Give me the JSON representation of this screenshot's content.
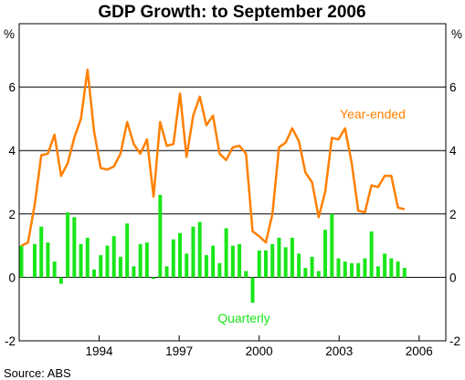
{
  "chart_data": {
    "type": "bar+line",
    "title": "GDP Growth: to September 2006",
    "unit_left": "%",
    "unit_right": "%",
    "source": "Source: ABS",
    "ylim": [
      -2,
      8
    ],
    "yticks": [
      -2,
      0,
      2,
      4,
      6
    ],
    "ytick_labels": [
      "-2",
      "0",
      "2",
      "4",
      "6"
    ],
    "x_start_year": 1991.0,
    "x_end_year": 2007.0,
    "xtick_labels": [
      "1994",
      "1997",
      "2000",
      "2003",
      "2006"
    ],
    "grid": true,
    "colors": {
      "line": "#ff8000",
      "bars": "#19e619",
      "grid": "#000000"
    },
    "series": [
      {
        "name": "Year-ended",
        "type": "line",
        "annotation": "Year-ended",
        "values": [
          1.0,
          1.1,
          2.3,
          3.85,
          3.9,
          4.5,
          3.2,
          3.6,
          4.4,
          5.0,
          6.55,
          4.6,
          3.45,
          3.4,
          3.5,
          3.9,
          4.9,
          4.2,
          3.9,
          4.35,
          2.55,
          4.9,
          4.15,
          4.2,
          5.8,
          3.8,
          5.1,
          5.7,
          4.8,
          5.1,
          3.9,
          3.7,
          4.1,
          4.15,
          3.9,
          1.45,
          1.3,
          1.1,
          2.0,
          4.1,
          4.25,
          4.7,
          4.3,
          3.3,
          3.0,
          1.9,
          2.7,
          4.4,
          4.35,
          4.7,
          3.6,
          2.1,
          2.05,
          2.9,
          2.85,
          3.2,
          3.2,
          2.2,
          2.15
        ]
      },
      {
        "name": "Quarterly",
        "type": "bar",
        "annotation": "Quarterly",
        "values": [
          1.0,
          0.0,
          1.05,
          1.6,
          1.1,
          0.5,
          -0.2,
          2.05,
          1.9,
          1.05,
          1.25,
          0.25,
          0.7,
          1.0,
          1.3,
          0.65,
          1.7,
          0.35,
          1.05,
          1.1,
          -0.05,
          2.6,
          0.35,
          1.2,
          1.4,
          0.75,
          1.6,
          1.75,
          0.7,
          1.0,
          0.45,
          1.55,
          1.0,
          1.05,
          0.2,
          -0.8,
          0.85,
          0.85,
          1.05,
          1.25,
          0.95,
          1.25,
          0.75,
          0.3,
          0.65,
          0.2,
          1.5,
          2.0,
          0.6,
          0.5,
          0.45,
          0.45,
          0.6,
          1.45,
          0.35,
          0.75,
          0.6,
          0.5,
          0.3
        ]
      }
    ]
  }
}
